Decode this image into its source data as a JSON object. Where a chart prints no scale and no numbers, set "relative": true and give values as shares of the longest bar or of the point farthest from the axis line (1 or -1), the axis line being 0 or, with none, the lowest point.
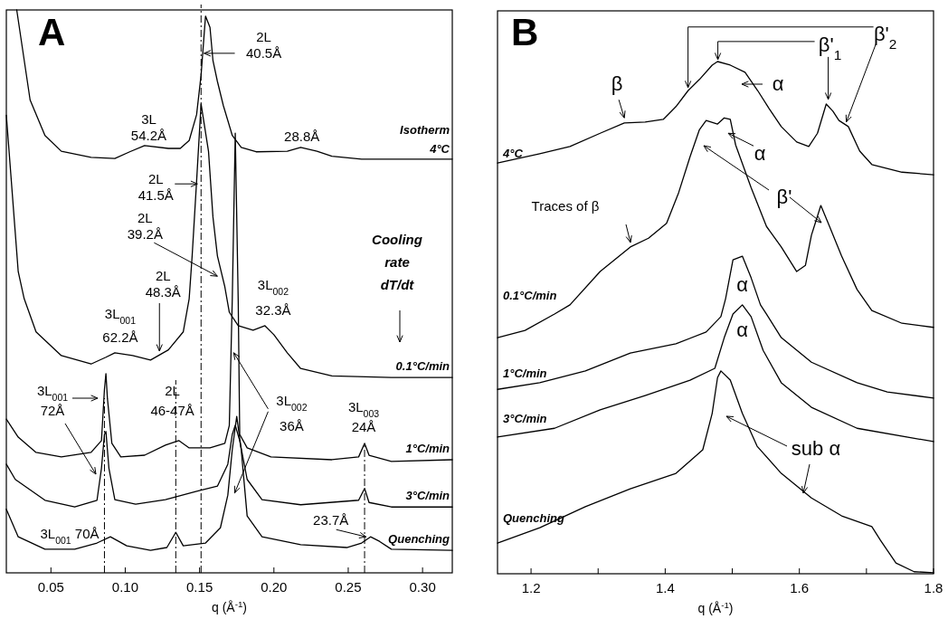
{
  "chart_data": [
    {
      "type": "line",
      "title": "A",
      "xlabel": "q (Å$^{-1}$)",
      "relative": true,
      "xlim": [
        0.02,
        0.32
      ],
      "xticks": [
        {
          "value": 0.05,
          "label": "0.05"
        },
        {
          "value": 0.1,
          "label": "0.10"
        },
        {
          "value": 0.15,
          "label": "0.15"
        },
        {
          "value": 0.2,
          "label": "0.20"
        },
        {
          "value": 0.25,
          "label": "0.25"
        },
        {
          "value": 0.3,
          "label": "0.30"
        }
      ],
      "series": [
        {
          "name": "Isotherm\n4°C",
          "color": "#000000",
          "x": [
            0.027,
            0.036,
            0.046,
            0.057,
            0.077,
            0.093,
            0.103,
            0.113,
            0.129,
            0.137,
            0.143,
            0.148,
            0.151,
            0.154,
            0.157,
            0.159,
            0.162,
            0.166,
            0.172,
            0.178,
            0.188,
            0.209,
            0.218,
            0.229,
            0.239,
            0.259,
            0.32
          ],
          "values": [
            1.0,
            0.84,
            0.777,
            0.749,
            0.738,
            0.736,
            0.748,
            0.759,
            0.754,
            0.754,
            0.768,
            0.814,
            0.884,
            0.989,
            0.969,
            0.91,
            0.873,
            0.83,
            0.777,
            0.756,
            0.748,
            0.749,
            0.756,
            0.749,
            0.74,
            0.735,
            0.735
          ]
        },
        {
          "name": "0.1°C/min",
          "color": "#000000",
          "x": [
            0.02,
            0.028,
            0.032,
            0.04,
            0.057,
            0.077,
            0.087,
            0.093,
            0.105,
            0.117,
            0.129,
            0.139,
            0.143,
            0.145,
            0.148,
            0.151,
            0.156,
            0.159,
            0.162,
            0.167,
            0.17,
            0.176,
            0.186,
            0.194,
            0.2,
            0.209,
            0.218,
            0.239,
            0.279,
            0.32
          ],
          "values": [
            0.813,
            0.535,
            0.487,
            0.428,
            0.386,
            0.371,
            0.383,
            0.391,
            0.386,
            0.378,
            0.396,
            0.428,
            0.487,
            0.563,
            0.696,
            0.833,
            0.749,
            0.632,
            0.563,
            0.508,
            0.463,
            0.439,
            0.431,
            0.439,
            0.423,
            0.391,
            0.363,
            0.35,
            0.347,
            0.347
          ]
        },
        {
          "name": "1°C/min",
          "color": "#000000",
          "x": [
            0.02,
            0.028,
            0.04,
            0.057,
            0.077,
            0.084,
            0.086,
            0.087,
            0.088,
            0.091,
            0.097,
            0.113,
            0.127,
            0.136,
            0.143,
            0.157,
            0.167,
            0.17,
            0.172,
            0.174,
            0.176,
            0.177,
            0.182,
            0.198,
            0.239,
            0.257,
            0.261,
            0.264,
            0.279,
            0.32
          ],
          "values": [
            0.273,
            0.241,
            0.214,
            0.206,
            0.214,
            0.235,
            0.326,
            0.354,
            0.31,
            0.23,
            0.206,
            0.209,
            0.227,
            0.235,
            0.222,
            0.222,
            0.23,
            0.262,
            0.487,
            0.781,
            0.482,
            0.246,
            0.222,
            0.206,
            0.201,
            0.206,
            0.23,
            0.209,
            0.198,
            0.201
          ]
        },
        {
          "name": "3°C/min",
          "color": "#000000",
          "x": [
            0.02,
            0.026,
            0.046,
            0.066,
            0.081,
            0.084,
            0.086,
            0.087,
            0.089,
            0.093,
            0.107,
            0.127,
            0.148,
            0.162,
            0.169,
            0.172,
            0.174,
            0.177,
            0.182,
            0.192,
            0.218,
            0.257,
            0.261,
            0.264,
            0.279,
            0.32
          ],
          "values": [
            0.193,
            0.166,
            0.129,
            0.117,
            0.129,
            0.186,
            0.246,
            0.251,
            0.186,
            0.13,
            0.122,
            0.13,
            0.145,
            0.154,
            0.193,
            0.246,
            0.262,
            0.235,
            0.166,
            0.13,
            0.121,
            0.129,
            0.15,
            0.125,
            0.117,
            0.117
          ]
        },
        {
          "name": "Quenching",
          "color": "#000000",
          "x": [
            0.02,
            0.028,
            0.046,
            0.066,
            0.081,
            0.09,
            0.101,
            0.117,
            0.128,
            0.134,
            0.139,
            0.154,
            0.164,
            0.169,
            0.172,
            0.175,
            0.178,
            0.182,
            0.192,
            0.218,
            0.249,
            0.259,
            0.265,
            0.271,
            0.279,
            0.32
          ],
          "values": [
            0.113,
            0.064,
            0.042,
            0.042,
            0.053,
            0.064,
            0.048,
            0.04,
            0.045,
            0.072,
            0.048,
            0.053,
            0.08,
            0.138,
            0.219,
            0.278,
            0.219,
            0.101,
            0.064,
            0.05,
            0.045,
            0.053,
            0.064,
            0.056,
            0.042,
            0.04
          ]
        }
      ],
      "ref_lines": [
        {
          "axis": "x",
          "value": 0.086,
          "line_style": "dashed"
        },
        {
          "axis": "x",
          "value": 0.134,
          "line_style": "dashed"
        },
        {
          "axis": "x",
          "value": 0.151,
          "line_style": "dashed"
        },
        {
          "axis": "x",
          "value": 0.261,
          "line_style": "dashed"
        }
      ],
      "annotations": [
        {
          "text": "2L\n40.5Å",
          "x": 0.153,
          "y": 0.923
        },
        {
          "text": "3L\n54.2Å",
          "x": 0.114,
          "y": 0.759
        },
        {
          "text": "28.8Å",
          "x": 0.22,
          "y": 0.756
        },
        {
          "text": "2L\n41.5Å",
          "x": 0.151,
          "y": 0.691
        },
        {
          "text": "2L\n39.2Å",
          "x": 0.162,
          "y": 0.527
        },
        {
          "text": "2L\n48.3Å",
          "x": 0.123,
          "y": 0.394
        },
        {
          "text": "3L$_{001}$\n62.2Å",
          "x": 0.093,
          "y": 0.391
        },
        {
          "text": "3L$_{002}$\n32.3Å",
          "x": 0.194,
          "y": 0.439
        },
        "Cooling\nrate\ndT/dt",
        "3L$_{001}$\n72Å",
        {
          "text": "2L\n46-47Å",
          "x": 0.136,
          "y": 0.235
        },
        {
          "text": "3L$_{002}$\n36Å",
          "x": 0.173,
          "y": 0.391
        },
        {
          "text": "3L$_{003}$\n24Å",
          "x": 0.261,
          "y": 0.23
        },
        {
          "text": "3L$_{001}$ 70Å",
          "x": 0.09,
          "y": 0.064
        },
        {
          "text": "23.7Å",
          "x": 0.262,
          "y": 0.064
        }
      ]
    },
    {
      "type": "line",
      "title": "B",
      "xlabel": "q (Å$^{-1}$)",
      "relative": true,
      "xlim": [
        1.15,
        1.8
      ],
      "xticks": [
        1.2,
        {
          "value": 1.3,
          "label": null
        },
        1.4,
        {
          "value": 1.5,
          "label": null
        },
        1.6,
        {
          "value": 1.7,
          "label": null
        },
        1.8
      ],
      "series": [
        {
          "name": "4°C",
          "color": "#000000",
          "x": [
            1.15,
            1.213,
            1.258,
            1.303,
            1.339,
            1.37,
            1.397,
            1.416,
            1.434,
            1.451,
            1.47,
            1.478,
            1.497,
            1.519,
            1.538,
            1.555,
            1.573,
            1.596,
            1.614,
            1.627,
            1.64,
            1.65,
            1.659,
            1.673,
            1.69,
            1.708,
            1.753,
            1.8
          ],
          "values": [
            0.802,
            0.82,
            0.834,
            0.86,
            0.88,
            0.882,
            0.887,
            0.912,
            0.943,
            0.965,
            0.993,
            1.0,
            0.993,
            0.979,
            0.943,
            0.908,
            0.873,
            0.843,
            0.834,
            0.86,
            0.917,
            0.903,
            0.885,
            0.873,
            0.825,
            0.799,
            0.784,
            0.779
          ]
        },
        {
          "name": "0.1°C/min",
          "color": "#000000",
          "x": [
            1.15,
            1.191,
            1.235,
            1.258,
            1.303,
            1.348,
            1.375,
            1.402,
            1.42,
            1.437,
            1.451,
            1.461,
            1.478,
            1.488,
            1.497,
            1.505,
            1.528,
            1.551,
            1.573,
            1.596,
            1.609,
            1.618,
            1.632,
            1.645,
            1.663,
            1.686,
            1.708,
            1.753,
            1.8
          ],
          "values": [
            0.461,
            0.475,
            0.507,
            0.525,
            0.59,
            0.638,
            0.655,
            0.684,
            0.744,
            0.814,
            0.867,
            0.885,
            0.878,
            0.89,
            0.887,
            0.837,
            0.754,
            0.678,
            0.638,
            0.59,
            0.602,
            0.661,
            0.719,
            0.678,
            0.62,
            0.555,
            0.514,
            0.489,
            0.481
          ]
        },
        {
          "name": "1°C/min",
          "color": "#000000",
          "x": [
            1.15,
            1.213,
            1.281,
            1.348,
            1.416,
            1.461,
            1.483,
            1.49,
            1.501,
            1.515,
            1.528,
            1.542,
            1.551,
            1.573,
            1.618,
            1.686,
            1.731,
            1.8
          ],
          "values": [
            0.36,
            0.373,
            0.396,
            0.431,
            0.449,
            0.472,
            0.502,
            0.537,
            0.613,
            0.62,
            0.578,
            0.525,
            0.507,
            0.461,
            0.413,
            0.373,
            0.355,
            0.343
          ]
        },
        {
          "name": "3°C/min",
          "color": "#000000",
          "x": [
            1.15,
            1.235,
            1.303,
            1.37,
            1.437,
            1.474,
            1.488,
            1.501,
            1.515,
            1.528,
            1.546,
            1.573,
            1.618,
            1.686,
            1.8
          ],
          "values": [
            0.267,
            0.284,
            0.32,
            0.348,
            0.378,
            0.401,
            0.461,
            0.507,
            0.525,
            0.502,
            0.436,
            0.373,
            0.325,
            0.284,
            0.258
          ]
        },
        {
          "name": "Quenching",
          "color": "#000000",
          "x": [
            1.15,
            1.213,
            1.281,
            1.348,
            1.416,
            1.456,
            1.47,
            1.478,
            1.483,
            1.497,
            1.515,
            1.537,
            1.573,
            1.618,
            1.663,
            1.708,
            1.721,
            1.744,
            1.771,
            1.8
          ],
          "values": [
            0.06,
            0.09,
            0.131,
            0.166,
            0.196,
            0.242,
            0.313,
            0.383,
            0.396,
            0.378,
            0.313,
            0.249,
            0.196,
            0.148,
            0.113,
            0.092,
            0.065,
            0.021,
            0.004,
            0.002
          ]
        }
      ],
      "annotations": [
        {
          "text": "β",
          "x": 1.339,
          "y": 0.89
        },
        "α",
        {
          "text": "β'$_{1}$",
          "x": 1.643,
          "y": 0.926
        },
        {
          "text": "β'$_{2}$",
          "x": 1.67,
          "y": 0.882
        },
        {
          "text": "α",
          "x": 1.494,
          "y": 0.86
        },
        "β'",
        "Traces of β",
        {
          "text": "α",
          "x": 1.515,
          "y": 0.62
        },
        {
          "text": "α",
          "x": 1.515,
          "y": 0.525
        },
        "sub α"
      ]
    }
  ]
}
